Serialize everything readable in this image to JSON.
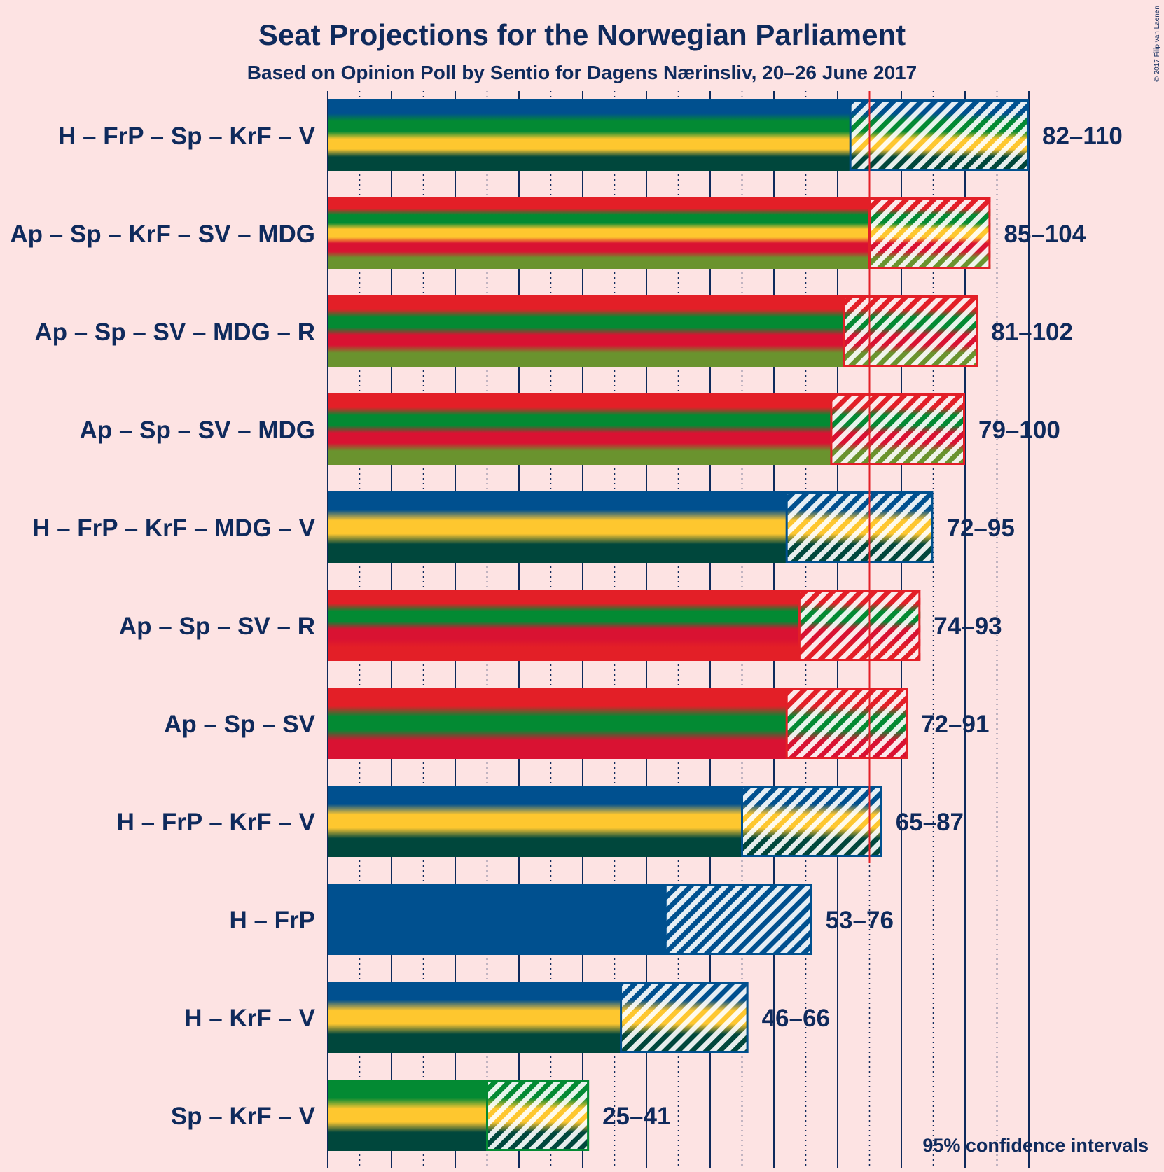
{
  "chart_data": {
    "type": "bar",
    "orientation": "horizontal",
    "title": "Seat Projections for the Norwegian Parliament",
    "subtitle": "Based on Opinion Poll by Sentio for Dagens Nærinsliv, 20–26 June 2017",
    "note": "95% confidence intervals",
    "copyright": "© 2017 Filip van Laenen",
    "majority_line": 85,
    "xlim": [
      0,
      110
    ],
    "major_tick_step": 10,
    "minor_tick_step": 5,
    "grid": true,
    "legend": "none",
    "colors": {
      "H": "#00508f",
      "FrP": "#00508f",
      "Sp": "#038a33",
      "KrF": "#fec72f",
      "V": "#00473c",
      "Ap": "#e31f27",
      "SV": "#d91232",
      "MDG": "#6a932e",
      "R": "#e31f27",
      "majority": "#e31f27",
      "axis": "#0f2a5c"
    },
    "coalitions": [
      {
        "label": "H – FrP – Sp – KrF – V",
        "parties": [
          "H",
          "Sp",
          "KrF",
          "V"
        ],
        "low": 82,
        "high": 110,
        "range_label": "82–110"
      },
      {
        "label": "Ap – Sp – KrF – SV – MDG",
        "parties": [
          "Ap",
          "Sp",
          "KrF",
          "SV",
          "MDG"
        ],
        "low": 85,
        "high": 104,
        "range_label": "85–104"
      },
      {
        "label": "Ap – Sp – SV – MDG – R",
        "parties": [
          "Ap",
          "Sp",
          "SV",
          "MDG"
        ],
        "low": 81,
        "high": 102,
        "range_label": "81–102"
      },
      {
        "label": "Ap – Sp – SV – MDG",
        "parties": [
          "Ap",
          "Sp",
          "SV",
          "MDG"
        ],
        "low": 79,
        "high": 100,
        "range_label": "79–100"
      },
      {
        "label": "H – FrP – KrF – MDG – V",
        "parties": [
          "H",
          "KrF",
          "V"
        ],
        "low": 72,
        "high": 95,
        "range_label": "72–95"
      },
      {
        "label": "Ap – Sp – SV – R",
        "parties": [
          "Ap",
          "Sp",
          "SV",
          "R"
        ],
        "low": 74,
        "high": 93,
        "range_label": "74–93"
      },
      {
        "label": "Ap – Sp – SV",
        "parties": [
          "Ap",
          "Sp",
          "SV"
        ],
        "low": 72,
        "high": 91,
        "range_label": "72–91"
      },
      {
        "label": "H – FrP – KrF – V",
        "parties": [
          "H",
          "KrF",
          "V"
        ],
        "low": 65,
        "high": 87,
        "range_label": "65–87"
      },
      {
        "label": "H – FrP",
        "parties": [
          "H",
          "FrP"
        ],
        "low": 53,
        "high": 76,
        "range_label": "53–76"
      },
      {
        "label": "H – KrF – V",
        "parties": [
          "H",
          "KrF",
          "V"
        ],
        "low": 46,
        "high": 66,
        "range_label": "46–66"
      },
      {
        "label": "Sp – KrF – V",
        "parties": [
          "Sp",
          "KrF",
          "V"
        ],
        "low": 25,
        "high": 41,
        "range_label": "25–41"
      }
    ]
  }
}
